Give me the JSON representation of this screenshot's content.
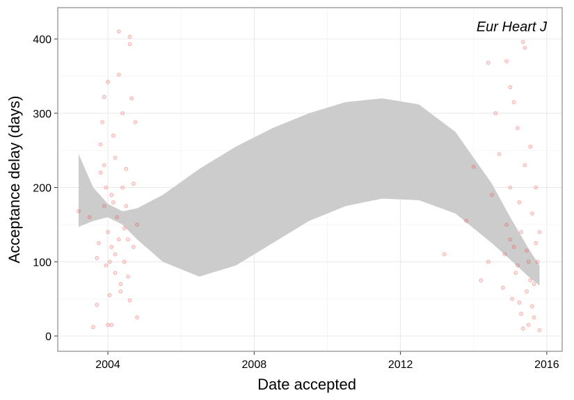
{
  "chart_data": {
    "type": "scatter",
    "annotation": "Eur Heart J",
    "x_label": "Date accepted",
    "y_label": "Acceptance delay (days)",
    "xlim": [
      2002.63,
      2016.42
    ],
    "ylim": [
      -20.6,
      442.2
    ],
    "xticks": [
      2004,
      2008,
      2012,
      2016
    ],
    "yticks": [
      0,
      100,
      200,
      300,
      400
    ],
    "x_minor_ticks": [
      2006,
      2010,
      2014
    ],
    "y_minor_ticks": [
      50,
      150,
      250,
      350
    ],
    "grid": true,
    "color": "#f03b3b",
    "band_color": "#cccccc",
    "x": [
      2003.2,
      2003.5,
      2003.6,
      2003.7,
      2003.7,
      2003.75,
      2003.8,
      2003.8,
      2003.85,
      2003.9,
      2003.9,
      2003.95,
      2004.0,
      2004.0,
      2004.05,
      2004.1,
      2004.1,
      2004.15,
      2004.2,
      2004.2,
      2004.25,
      2004.3,
      2004.3,
      2004.3,
      2004.35,
      2004.4,
      2004.4,
      2004.45,
      2004.5,
      2004.5,
      2004.55,
      2004.6,
      2004.6,
      2004.6,
      2004.65,
      2004.7,
      2004.7,
      2004.75,
      2004.8,
      2004.8,
      2003.9,
      2004.0,
      2004.2,
      2004.45,
      2004.1,
      2003.95,
      2004.55,
      2004.35,
      2004.15,
      2004.05,
      2013.2,
      2013.8,
      2014.0,
      2014.2,
      2014.4,
      2014.4,
      2014.5,
      2014.6,
      2014.7,
      2014.8,
      2014.9,
      2014.9,
      2015.0,
      2015.0,
      2015.05,
      2015.1,
      2015.1,
      2015.15,
      2015.2,
      2015.25,
      2015.3,
      2015.3,
      2015.35,
      2015.4,
      2015.4,
      2015.45,
      2015.5,
      2015.5,
      2015.55,
      2015.6,
      2015.6,
      2015.65,
      2015.7,
      2015.7,
      2015.75,
      2015.8,
      2015.8,
      2015.2,
      2015.45,
      2015.35,
      2015.55,
      2015.0,
      2014.85,
      2015.25,
      2015.65
    ],
    "values": [
      168,
      160,
      12,
      42,
      105,
      125,
      220,
      258,
      288,
      175,
      322,
      95,
      342,
      140,
      55,
      190,
      15,
      270,
      110,
      85,
      160,
      410,
      352,
      130,
      60,
      200,
      300,
      100,
      225,
      175,
      80,
      403,
      393,
      48,
      320,
      205,
      120,
      288,
      150,
      25,
      230,
      15,
      240,
      145,
      120,
      200,
      130,
      70,
      180,
      100,
      110,
      155,
      228,
      75,
      368,
      100,
      190,
      300,
      245,
      65,
      370,
      150,
      335,
      200,
      50,
      315,
      120,
      85,
      280,
      180,
      30,
      140,
      396,
      388,
      230,
      60,
      100,
      15,
      255,
      165,
      40,
      70,
      125,
      200,
      100,
      8,
      140,
      95,
      115,
      10,
      75,
      130,
      110,
      45,
      25
    ],
    "band": {
      "x": [
        2003.2,
        2003.6,
        2004.0,
        2004.4,
        2004.8,
        2005.5,
        2006.5,
        2007.5,
        2008.5,
        2009.5,
        2010.5,
        2011.5,
        2012.5,
        2013.5,
        2014.5,
        2015.0,
        2015.5,
        2015.8
      ],
      "upper": [
        245,
        200,
        178,
        168,
        172,
        190,
        225,
        255,
        280,
        300,
        315,
        320,
        312,
        275,
        205,
        160,
        118,
        95
      ],
      "lower": [
        147,
        155,
        160,
        150,
        130,
        100,
        80,
        95,
        125,
        155,
        175,
        185,
        183,
        165,
        125,
        103,
        80,
        68
      ]
    }
  }
}
